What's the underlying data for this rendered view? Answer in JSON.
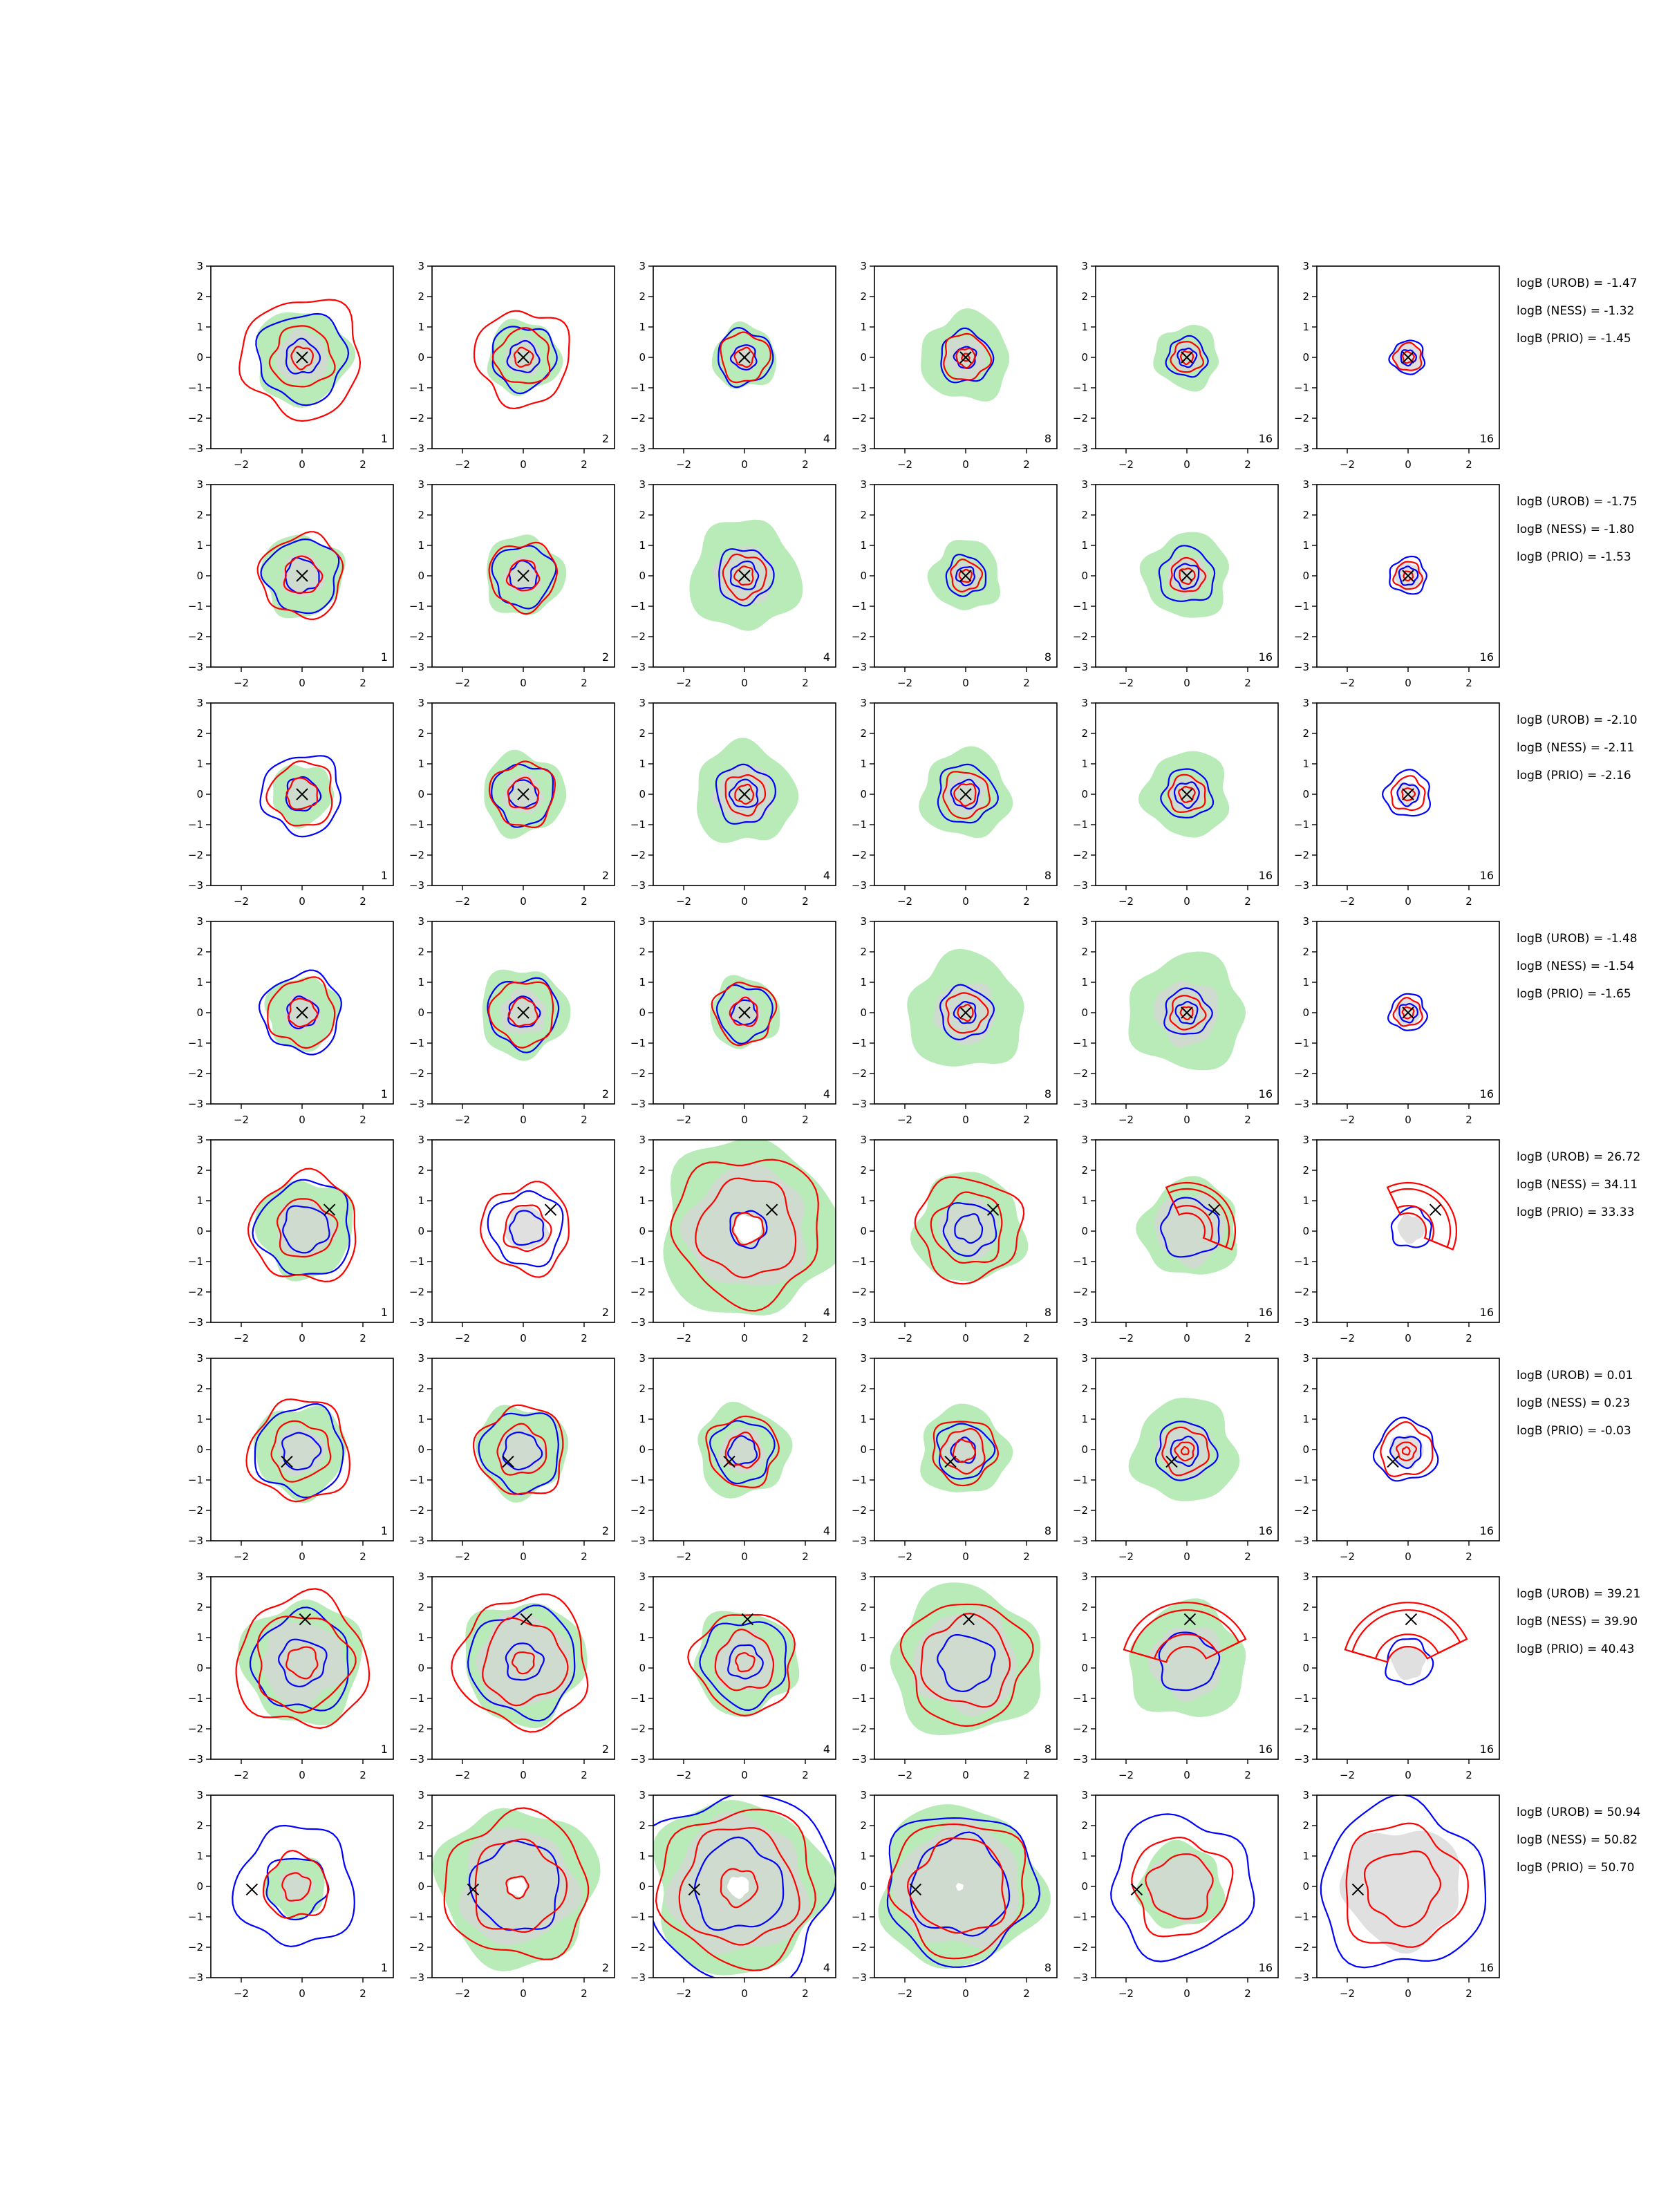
{
  "chart_data": {
    "type": "contour",
    "grid": false,
    "xlim": [
      -3,
      3
    ],
    "ylim": [
      -3,
      3
    ],
    "x_ticks": [
      "−2",
      "0",
      "2"
    ],
    "y_ticks": [
      "3",
      "2",
      "1",
      "0",
      "−1",
      "−2",
      "−3"
    ],
    "colors": {
      "fill_green": "#b8ebb8",
      "fill_grey": "#d6d6d6",
      "contour_blue": "#0000ff",
      "contour_red": "#ff0000",
      "marker": "#000000"
    },
    "column_labels": [
      "1",
      "2",
      "4",
      "8",
      "16",
      "16"
    ],
    "rows": [
      {
        "marker": [
          0,
          0
        ],
        "annotations": [
          "logB (UROB) = -1.47",
          "logB (NESS) = -1.32",
          "logB (PRIO) = -1.45"
        ],
        "panels": [
          {
            "green": 1.55,
            "grey": 0.85,
            "blue": [
              1.45,
              0.55
            ],
            "red": [
              1.95,
              1.0,
              0.35
            ]
          },
          {
            "green": 1.2,
            "grey": 0.6,
            "blue": [
              1.05,
              0.5
            ],
            "red": [
              1.55,
              0.9,
              0.3
            ]
          },
          {
            "green": 1.05,
            "grey": 0.45,
            "blue": [
              0.9,
              0.4
            ],
            "red": [
              0.8,
              0.3
            ]
          },
          {
            "green": 1.45,
            "grey": 0.7,
            "blue": [
              0.85,
              0.35
            ],
            "red": [
              0.75,
              0.3,
              0.12
            ]
          },
          {
            "green": 1.05,
            "grey": 0.5,
            "blue": [
              0.65,
              0.3
            ],
            "red": [
              0.5,
              0.2
            ]
          },
          {
            "green": 0,
            "grey": 0.5,
            "blue": [
              0.55,
              0.25
            ],
            "red": [
              0.45,
              0.18
            ]
          }
        ]
      },
      {
        "marker": [
          0,
          0
        ],
        "annotations": [
          "logB (UROB) = -1.75",
          "logB (NESS) = -1.80",
          "logB (PRIO) = -1.53"
        ],
        "panels": [
          {
            "green": 1.35,
            "grey": 0.7,
            "blue": [
              1.2,
              0.55
            ],
            "red": [
              1.35,
              0.6
            ]
          },
          {
            "green": 1.3,
            "grey": 0.6,
            "blue": [
              1.0,
              0.45
            ],
            "red": [
              1.1,
              0.5
            ]
          },
          {
            "green": 1.8,
            "grey": 0.95,
            "blue": [
              0.9,
              0.45
            ],
            "red": [
              0.7,
              0.3
            ]
          },
          {
            "green": 1.15,
            "grey": 0.5,
            "blue": [
              0.65,
              0.3
            ],
            "red": [
              0.5,
              0.2
            ]
          },
          {
            "green": 1.4,
            "grey": 0.65,
            "blue": [
              0.9,
              0.4
            ],
            "red": [
              0.55,
              0.25
            ]
          },
          {
            "green": 0,
            "grey": 0.45,
            "blue": [
              0.6,
              0.3
            ],
            "red": [
              0.45,
              0.15
            ]
          }
        ]
      },
      {
        "marker": [
          0,
          0
        ],
        "annotations": [
          "logB (UROB) = -2.10",
          "logB (NESS) = -2.11",
          "logB (PRIO) = -2.16"
        ],
        "panels": [
          {
            "green": 1.0,
            "grey": 0.55,
            "blue": [
              1.3,
              0.55
            ],
            "red": [
              1.05,
              0.5
            ]
          },
          {
            "green": 1.35,
            "grey": 0.65,
            "blue": [
              1.0,
              0.45
            ],
            "red": [
              1.05,
              0.5
            ]
          },
          {
            "green": 1.65,
            "grey": 0.95,
            "blue": [
              0.95,
              0.45
            ],
            "red": [
              0.65,
              0.3
            ]
          },
          {
            "green": 1.45,
            "grey": 0.7,
            "blue": [
              0.95,
              0.45
            ],
            "red": [
              0.75,
              0.35
            ]
          },
          {
            "green": 1.4,
            "grey": 0.6,
            "blue": [
              0.8,
              0.4
            ],
            "red": [
              0.6,
              0.25
            ]
          },
          {
            "green": 0,
            "grey": 0.4,
            "blue": [
              0.75,
              0.35
            ],
            "red": [
              0.55,
              0.2
            ]
          }
        ]
      },
      {
        "marker": [
          0,
          0
        ],
        "annotations": [
          "logB (UROB) = -1.48",
          "logB (NESS) = -1.54",
          "logB (PRIO) = -1.65"
        ],
        "panels": [
          {
            "green": 1.2,
            "grey": 0.6,
            "blue": [
              1.3,
              0.5
            ],
            "red": [
              1.1,
              0.45
            ]
          },
          {
            "green": 1.45,
            "grey": 0.75,
            "blue": [
              1.15,
              0.5
            ],
            "red": [
              1.05,
              0.45
            ]
          },
          {
            "green": 1.15,
            "grey": 0.55,
            "blue": [
              0.9,
              0.4
            ],
            "red": [
              1.0,
              0.45
            ]
          },
          {
            "green": 1.9,
            "grey": 1.0,
            "blue": [
              0.85,
              0.35
            ],
            "red": [
              0.65,
              0.25
            ]
          },
          {
            "green": 1.9,
            "grey": 1.05,
            "blue": [
              0.75,
              0.35
            ],
            "red": [
              0.55,
              0.2
            ]
          },
          {
            "green": 0,
            "grey": 0.45,
            "blue": [
              0.6,
              0.3
            ],
            "red": [
              0.45,
              0.18
            ]
          }
        ]
      },
      {
        "marker": [
          0.9,
          0.7
        ],
        "annotations": [
          "logB (UROB) = 26.72",
          "logB (NESS) = 34.11",
          "logB (PRIO) = 33.33"
        ],
        "panels": [
          {
            "green": 1.6,
            "grey": 0.95,
            "blue": [
              1.55,
              0.75
            ],
            "red": [
              1.75,
              0.95
            ]
          },
          {
            "green": 0,
            "grey": 0.7,
            "blue": [
              1.2,
              0.55
            ],
            "red": [
              1.45,
              0.75
            ]
          },
          {
            "green": 2.9,
            "grey": 2.0,
            "blue": [
              0.6
            ],
            "red": [
              2.4,
              1.6,
              0.5
            ],
            "hole": 0.45
          },
          {
            "green": 1.8,
            "grey": 0.95,
            "blue": [
              0.85,
              0.45
            ],
            "red": [
              1.7,
              1.15
            ]
          },
          {
            "green": 1.6,
            "grey": 1.15,
            "blue": [
              0.95
            ],
            "red": [],
            "arc": "small"
          },
          {
            "green": 0,
            "grey": 0.45,
            "blue": [
              0.65
            ],
            "red": [],
            "arc": "small"
          }
        ]
      },
      {
        "marker": [
          -0.5,
          -0.4
        ],
        "annotations": [
          "logB (UROB) = 0.01",
          "logB (NESS) = 0.23",
          "logB (PRIO) = -0.03"
        ],
        "panels": [
          {
            "green": 1.5,
            "grey": 0.8,
            "blue": [
              1.45,
              0.6
            ],
            "red": [
              1.65,
              0.95
            ]
          },
          {
            "green": 1.5,
            "grey": 0.75,
            "blue": [
              1.3,
              0.6
            ],
            "red": [
              1.45,
              0.8
            ]
          },
          {
            "green": 1.5,
            "grey": 0.75,
            "blue": [
              1.0,
              0.45
            ],
            "red": [
              1.15,
              0.55
            ]
          },
          {
            "green": 1.45,
            "grey": 0.75,
            "blue": [
              0.9,
              0.4
            ],
            "red": [
              1.05,
              0.7,
              0.35
            ]
          },
          {
            "green": 1.7,
            "grey": 0.9,
            "blue": [
              0.95,
              0.45
            ],
            "red": [
              0.75,
              0.3,
              0.12
            ]
          },
          {
            "green": 0,
            "grey": 0.55,
            "blue": [
              1.0,
              0.5
            ],
            "red": [
              0.85,
              0.3,
              0.12
            ]
          }
        ]
      },
      {
        "marker": [
          0.1,
          1.6
        ],
        "annotations": [
          "logB (UROB) = 39.21",
          "logB (NESS) = 39.90",
          "logB (PRIO) = 40.43"
        ],
        "panels": [
          {
            "green": 2.0,
            "grey": 1.35,
            "blue": [
              1.6,
              0.75
            ],
            "red": [
              2.15,
              1.55,
              0.5
            ]
          },
          {
            "green": 2.0,
            "grey": 1.55,
            "blue": [
              1.75,
              0.6
            ],
            "red": [
              2.15,
              1.35,
              0.35
            ]
          },
          {
            "green": 1.7,
            "grey": 1.0,
            "blue": [
              1.4,
              0.55
            ],
            "red": [
              1.65,
              0.95,
              0.3
            ]
          },
          {
            "green": 2.45,
            "grey": 1.7,
            "blue": [
              0.9
            ],
            "red": [
              2.0,
              1.45
            ]
          },
          {
            "green": 1.9,
            "grey": 1.2,
            "blue": [
              0.95
            ],
            "red": [],
            "arc": "big"
          },
          {
            "green": 0,
            "grey": 0.55,
            "blue": [
              0.75
            ],
            "red": [],
            "arc": "big"
          }
        ]
      },
      {
        "marker": [
          -1.65,
          -0.1
        ],
        "annotations": [
          "logB (UROB) = 50.94",
          "logB (NESS) = 50.82",
          "logB (PRIO) = 50.70"
        ],
        "panels": [
          {
            "green": 1.0,
            "grey": 0.55,
            "blue": [
              1.95,
              1.0
            ],
            "red": [
              1.05,
              0.45
            ]
          },
          {
            "green": 2.6,
            "grey": 1.9,
            "blue": [
              1.45
            ],
            "red": [
              2.35,
              1.5,
              0.35
            ],
            "hole": 0.3
          },
          {
            "green": 2.85,
            "grey": 2.25,
            "blue": [
              3.1,
              1.45
            ],
            "red": [
              2.55,
              1.9,
              0.6
            ],
            "hole": 0.35
          },
          {
            "green": 2.65,
            "grey": 2.05,
            "blue": [
              2.45,
              1.6
            ],
            "red": [
              2.2,
              1.55
            ],
            "hole": 0.12
          },
          {
            "green": 1.4,
            "grey": 1.1,
            "blue": [
              2.3
            ],
            "red": [
              1.6,
              1.05
            ]
          },
          {
            "green": 0,
            "grey": 1.95,
            "blue": [
              2.7
            ],
            "red": [
              2.0,
              1.2
            ]
          }
        ]
      }
    ]
  }
}
